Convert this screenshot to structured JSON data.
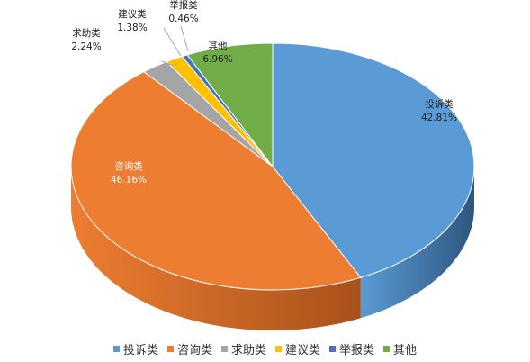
{
  "chart_data": {
    "type": "pie",
    "title": "",
    "legend_position": "bottom",
    "slices": [
      {
        "name": "投诉类",
        "value": 42.81,
        "label": "42.81%",
        "color": "#5b9bd5",
        "dark": "#2e5780"
      },
      {
        "name": "咨询类",
        "value": 46.16,
        "label": "46.16%",
        "color": "#ed7d31",
        "dark": "#a8521b"
      },
      {
        "name": "求助类",
        "value": 2.24,
        "label": "2.24%",
        "color": "#a5a5a5",
        "dark": "#6e6e6e"
      },
      {
        "name": "建议类",
        "value": 1.38,
        "label": "1.38%",
        "color": "#ffc000",
        "dark": "#b38600"
      },
      {
        "name": "举报类",
        "value": 0.46,
        "label": "0.46%",
        "color": "#4472c4",
        "dark": "#2b4a85"
      },
      {
        "name": "其他",
        "value": 6.96,
        "label": "6.96%",
        "color": "#70ad47",
        "dark": "#4a7a2d"
      }
    ]
  }
}
